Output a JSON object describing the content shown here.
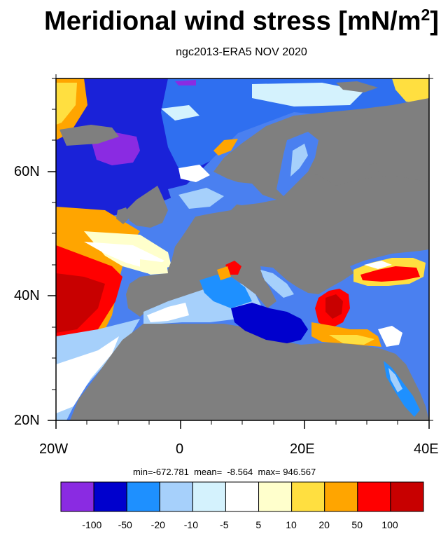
{
  "title_main": "Meridional wind stress [mN/m",
  "title_sup": "2",
  "title_end": "]",
  "subtitle": "ngc2013-ERA5  NOV 2020",
  "axes": {
    "x_ticks": [
      "20W",
      "0",
      "20E",
      "40E"
    ],
    "y_ticks": [
      "60N",
      "40N",
      "20N"
    ]
  },
  "stats": {
    "min": "-672.781",
    "mean": "-8.564",
    "max": "946.567",
    "text": "min=-672.781  mean=  -8.564  max= 946.567"
  },
  "colorbar": {
    "colors": [
      "#8a2be2",
      "#0000cd",
      "#1e90ff",
      "#a6d0fb",
      "#d4f2fd",
      "#ffffff",
      "#ffffcc",
      "#ffdf40",
      "#ffa500",
      "#ff0000",
      "#c80000"
    ],
    "labels": [
      "-100",
      "-50",
      "-20",
      "-10",
      "-5",
      "5",
      "10",
      "20",
      "50",
      "100"
    ]
  },
  "land_color": "#7f7f7f"
}
